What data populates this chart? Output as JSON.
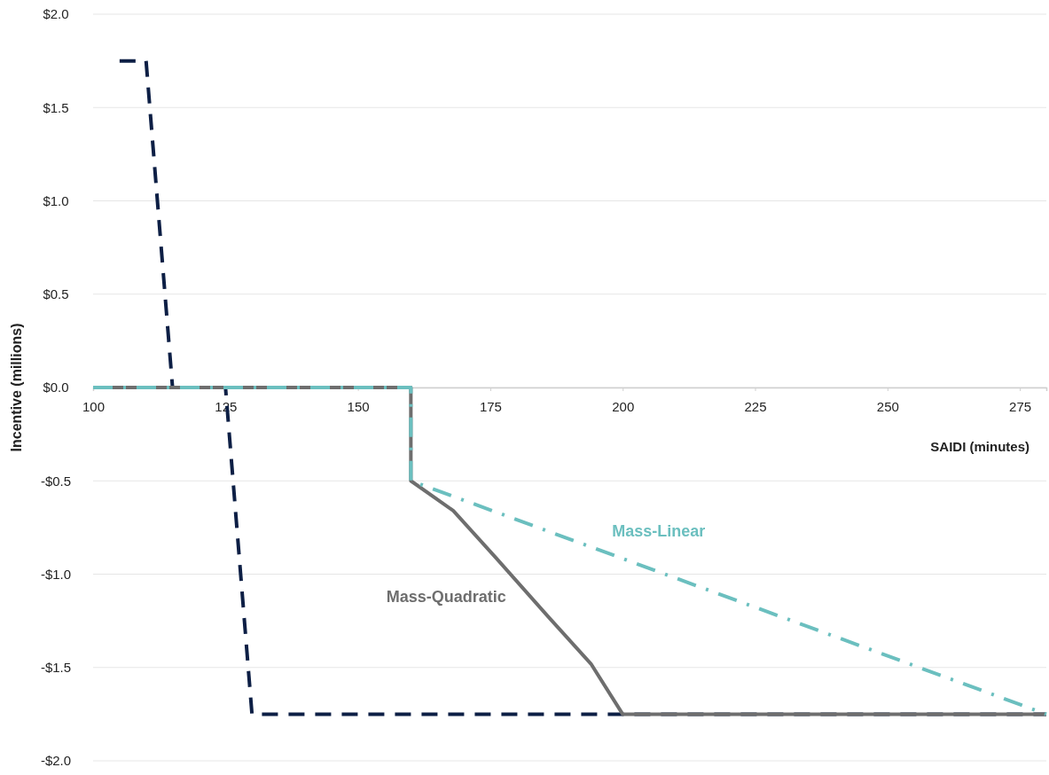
{
  "chart_data": {
    "type": "line",
    "xlabel": "SAIDI (minutes)",
    "ylabel": "Incentive (millions)",
    "xlim": [
      100,
      280
    ],
    "xticks": [
      100,
      125,
      150,
      175,
      200,
      225,
      250,
      275
    ],
    "ylim": [
      -2.0,
      2.0
    ],
    "yticks": [
      {
        "value": -2.0,
        "label": "-$2.0"
      },
      {
        "value": -1.5,
        "label": "-$1.5"
      },
      {
        "value": -1.0,
        "label": "-$1.0"
      },
      {
        "value": -0.5,
        "label": "-$0.5"
      },
      {
        "value": 0,
        "label": "$0.0"
      },
      {
        "value": 0.5,
        "label": "$0.5"
      },
      {
        "value": 1.0,
        "label": "$1.0"
      },
      {
        "value": 1.5,
        "label": "$1.5"
      },
      {
        "value": 2.0,
        "label": "$2.0"
      }
    ],
    "grid": "y",
    "legend": false,
    "marker": "none",
    "series": [
      {
        "color": "#0d1f45",
        "line_style": "dashed",
        "x": [
          105,
          110,
          115,
          125,
          130,
          280
        ],
        "values": [
          1.75,
          1.75,
          0,
          0,
          -1.75,
          -1.75
        ]
      },
      {
        "name": "Mass-Quadratic",
        "color": "#6e6e6e",
        "line_style": "solid",
        "x": [
          100,
          160,
          160,
          168,
          176,
          186,
          194,
          200,
          280
        ],
        "values": [
          0,
          0,
          -0.5,
          -0.66,
          -0.91,
          -1.23,
          -1.48,
          -1.75,
          -1.75
        ]
      },
      {
        "name": "Mass-Linear",
        "color": "#6bbfbf",
        "line_style": "dashed",
        "x": [
          100,
          160,
          160,
          280
        ],
        "values": [
          0,
          0,
          -0.5,
          -1.75
        ]
      }
    ]
  }
}
